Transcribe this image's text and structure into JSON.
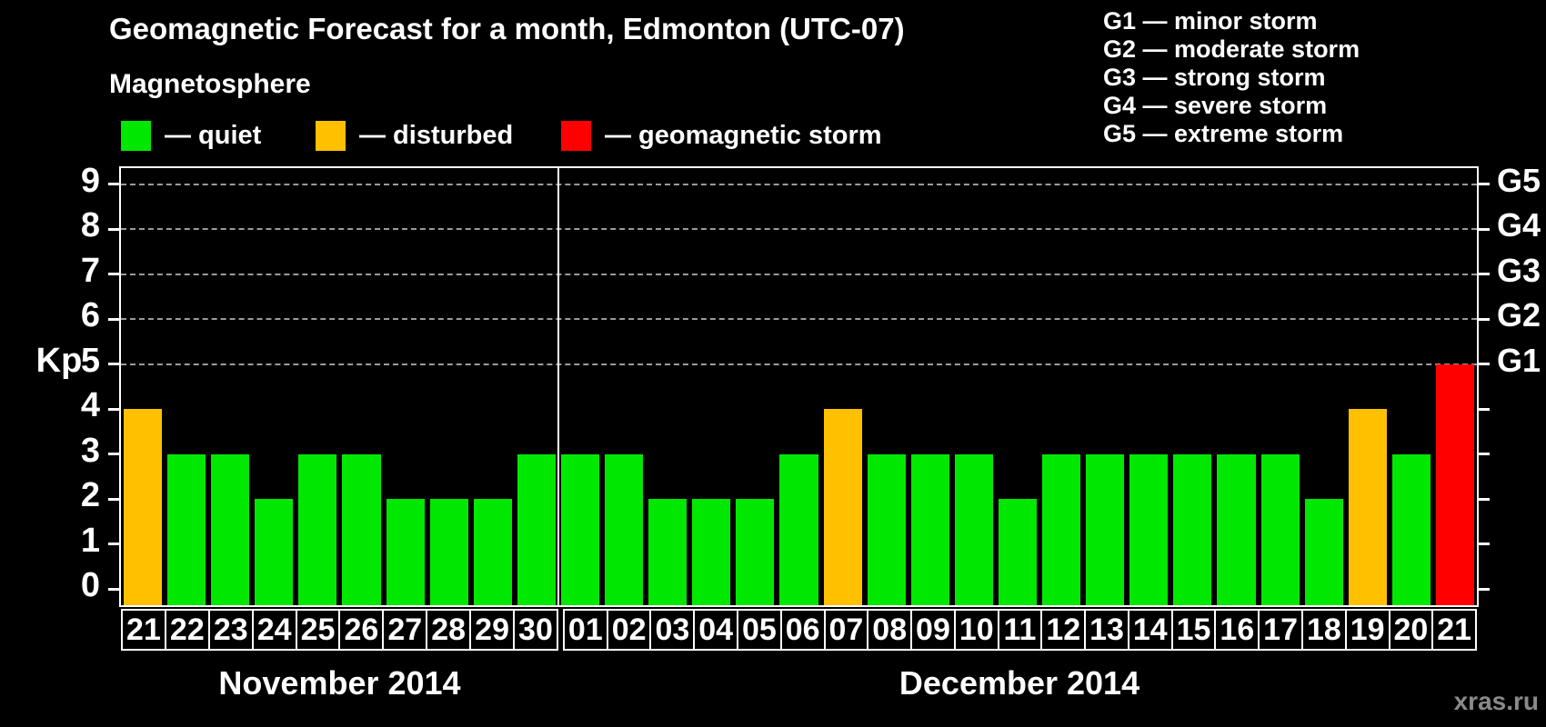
{
  "title": "Geomagnetic Forecast for a month, Edmonton (UTC-07)",
  "subtitle": "Magnetosphere",
  "legend": {
    "items": [
      {
        "name": "quiet",
        "label": "— quiet",
        "color": "#00e800"
      },
      {
        "name": "disturbed",
        "label": "— disturbed",
        "color": "#ffc000"
      },
      {
        "name": "storm",
        "label": "— geomagnetic storm",
        "color": "#ff0000"
      }
    ]
  },
  "storm_scale_legend": [
    "G1 — minor storm",
    "G2 — moderate storm",
    "G3 — strong storm",
    "G4 — severe storm",
    "G5 — extreme storm"
  ],
  "watermark": "xras.ru",
  "chart_data": {
    "type": "bar",
    "title": "Geomagnetic Forecast for a month, Edmonton (UTC-07)",
    "ylabel": "Kp",
    "ylim": [
      0,
      9
    ],
    "grid": "dashed horizontal gray gridlines at Kp 5-9 (G1-G5 storm levels)",
    "y_axis_left": {
      "label": "Kp",
      "ticks": [
        0,
        1,
        2,
        3,
        4,
        5,
        6,
        7,
        8,
        9
      ]
    },
    "y_axis_right": {
      "ticks": [
        {
          "kp": 5,
          "label": "G1"
        },
        {
          "kp": 6,
          "label": "G2"
        },
        {
          "kp": 7,
          "label": "G3"
        },
        {
          "kp": 8,
          "label": "G4"
        },
        {
          "kp": 9,
          "label": "G5"
        }
      ]
    },
    "colors": {
      "quiet": "#00e800",
      "disturbed": "#ffc000",
      "storm": "#ff0000"
    },
    "months": [
      {
        "label": "November 2014",
        "days": [
          {
            "day": "21",
            "kp": 4,
            "status": "disturbed"
          },
          {
            "day": "22",
            "kp": 3,
            "status": "quiet"
          },
          {
            "day": "23",
            "kp": 3,
            "status": "quiet"
          },
          {
            "day": "24",
            "kp": 2,
            "status": "quiet"
          },
          {
            "day": "25",
            "kp": 3,
            "status": "quiet"
          },
          {
            "day": "26",
            "kp": 3,
            "status": "quiet"
          },
          {
            "day": "27",
            "kp": 2,
            "status": "quiet"
          },
          {
            "day": "28",
            "kp": 2,
            "status": "quiet"
          },
          {
            "day": "29",
            "kp": 2,
            "status": "quiet"
          },
          {
            "day": "30",
            "kp": 3,
            "status": "quiet"
          }
        ]
      },
      {
        "label": "December 2014",
        "days": [
          {
            "day": "01",
            "kp": 3,
            "status": "quiet"
          },
          {
            "day": "02",
            "kp": 3,
            "status": "quiet"
          },
          {
            "day": "03",
            "kp": 2,
            "status": "quiet"
          },
          {
            "day": "04",
            "kp": 2,
            "status": "quiet"
          },
          {
            "day": "05",
            "kp": 2,
            "status": "quiet"
          },
          {
            "day": "06",
            "kp": 3,
            "status": "quiet"
          },
          {
            "day": "07",
            "kp": 4,
            "status": "disturbed"
          },
          {
            "day": "08",
            "kp": 3,
            "status": "quiet"
          },
          {
            "day": "09",
            "kp": 3,
            "status": "quiet"
          },
          {
            "day": "10",
            "kp": 3,
            "status": "quiet"
          },
          {
            "day": "11",
            "kp": 2,
            "status": "quiet"
          },
          {
            "day": "12",
            "kp": 3,
            "status": "quiet"
          },
          {
            "day": "13",
            "kp": 3,
            "status": "quiet"
          },
          {
            "day": "14",
            "kp": 3,
            "status": "quiet"
          },
          {
            "day": "15",
            "kp": 3,
            "status": "quiet"
          },
          {
            "day": "16",
            "kp": 3,
            "status": "quiet"
          },
          {
            "day": "17",
            "kp": 3,
            "status": "quiet"
          },
          {
            "day": "18",
            "kp": 2,
            "status": "quiet"
          },
          {
            "day": "19",
            "kp": 4,
            "status": "disturbed"
          },
          {
            "day": "20",
            "kp": 3,
            "status": "quiet"
          },
          {
            "day": "21",
            "kp": 5,
            "status": "storm"
          }
        ]
      }
    ]
  }
}
